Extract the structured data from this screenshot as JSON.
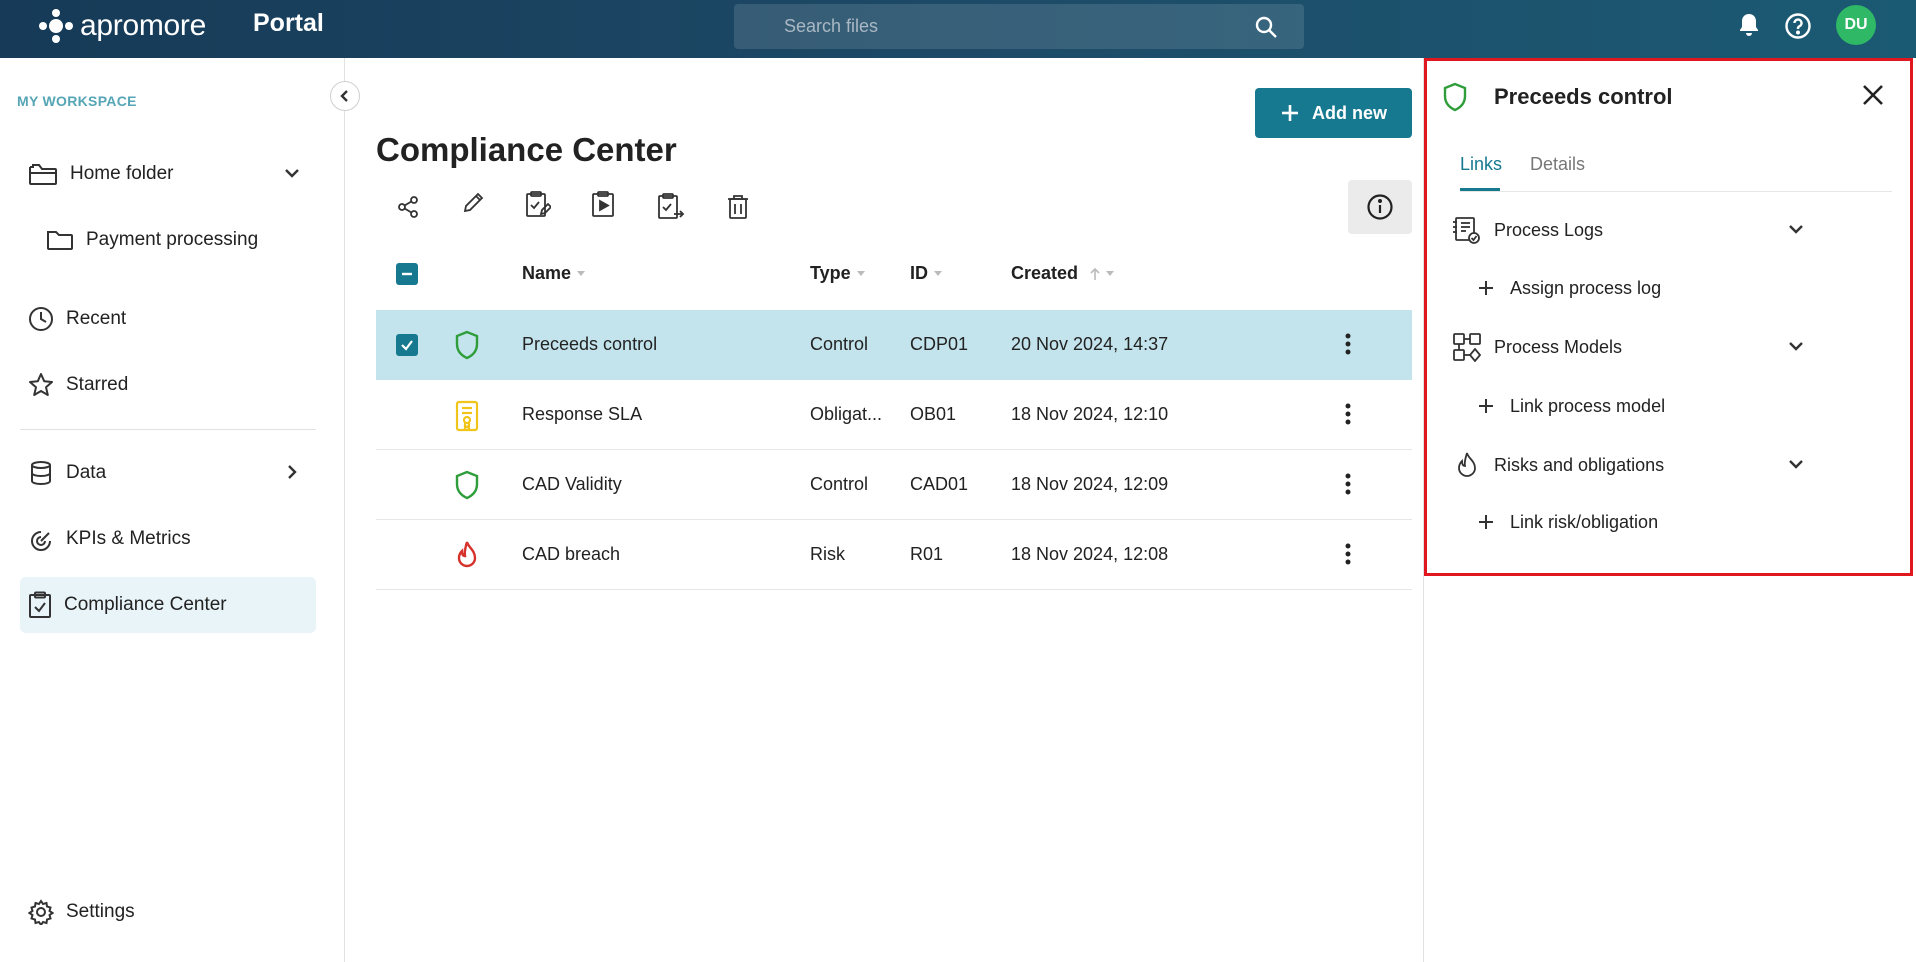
{
  "topbar": {
    "brand": "apromore",
    "portal": "Portal",
    "search_placeholder": "Search files",
    "avatar_initials": "DU"
  },
  "sidebar": {
    "workspace_label": "MY WORKSPACE",
    "items": [
      {
        "label": "Home folder",
        "icon": "folder-icon"
      },
      {
        "label": "Payment processing",
        "icon": "folder-icon"
      },
      {
        "label": "Recent",
        "icon": "clock-icon"
      },
      {
        "label": "Starred",
        "icon": "star-icon"
      },
      {
        "label": "Data",
        "icon": "database-icon"
      },
      {
        "label": "KPIs & Metrics",
        "icon": "gauge-icon"
      },
      {
        "label": "Compliance Center",
        "icon": "clipboard-check-icon",
        "active": true
      },
      {
        "label": "Settings",
        "icon": "gear-icon"
      }
    ]
  },
  "main": {
    "title": "Compliance Center",
    "add_button": "Add new",
    "toolbar": [
      "share-icon",
      "edit-icon",
      "clipboard-edit-icon",
      "clipboard-play-icon",
      "clipboard-export-icon",
      "trash-icon"
    ],
    "columns": {
      "name": "Name",
      "type": "Type",
      "id": "ID",
      "created": "Created"
    },
    "rows": [
      {
        "name": "Preceeds control",
        "type": "Control",
        "id": "CDP01",
        "created": "20 Nov 2024, 14:37",
        "icon": "shield-icon",
        "selected": true
      },
      {
        "name": "Response SLA",
        "type": "Obligat...",
        "id": "OB01",
        "created": "18 Nov 2024, 12:10",
        "icon": "document-seal-icon",
        "selected": false
      },
      {
        "name": "CAD Validity",
        "type": "Control",
        "id": "CAD01",
        "created": "18 Nov 2024, 12:09",
        "icon": "shield-icon",
        "selected": false
      },
      {
        "name": "CAD breach",
        "type": "Risk",
        "id": "R01",
        "created": "18 Nov 2024, 12:08",
        "icon": "flame-icon",
        "selected": false
      }
    ]
  },
  "panel": {
    "title": "Preceeds control",
    "tabs": [
      "Links",
      "Details"
    ],
    "sections": [
      {
        "label": "Process Logs",
        "link": "Assign process log",
        "icon": "process-log-icon"
      },
      {
        "label": "Process Models",
        "link": "Link process model",
        "icon": "process-model-icon"
      },
      {
        "label": "Risks and obligations",
        "link": "Link risk/obligation",
        "icon": "flame-icon"
      }
    ]
  },
  "colors": {
    "accent": "#167990",
    "selected_row": "#c3e4ec",
    "control_green": "#2e9d3a",
    "obligation_yellow": "#f0c419",
    "risk_red": "#d6322b",
    "highlight_red": "#e0171f"
  }
}
